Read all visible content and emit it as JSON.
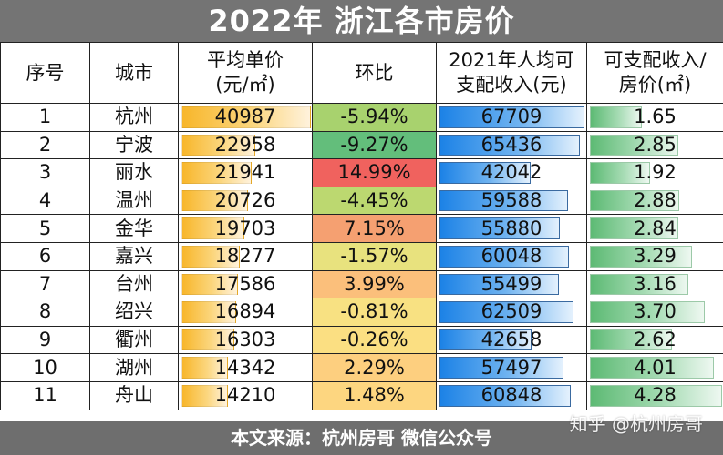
{
  "title": "2022年 浙江各市房价",
  "headers": {
    "index": "序号",
    "city": "城市",
    "price_line1": "平均单价",
    "price_line2": "(元/㎡)",
    "mom": "环比",
    "income_line1": "2021年人均可",
    "income_line2": "支配收入(元)",
    "ratio_line1": "可支配收入/",
    "ratio_line2": "房价(㎡)"
  },
  "rows": [
    {
      "index": "1",
      "city": "杭州",
      "price": "40987",
      "mom": "-5.94%",
      "mom_color": "#a8d26e",
      "income": "67709",
      "ratio": "1.65"
    },
    {
      "index": "2",
      "city": "宁波",
      "price": "22958",
      "mom": "-9.27%",
      "mom_color": "#63be7b",
      "income": "65436",
      "ratio": "2.85"
    },
    {
      "index": "3",
      "city": "丽水",
      "price": "21941",
      "mom": "14.99%",
      "mom_color": "#f0625e",
      "income": "42042",
      "ratio": "1.92"
    },
    {
      "index": "4",
      "city": "温州",
      "price": "20726",
      "mom": "-4.45%",
      "mom_color": "#bcd870",
      "income": "59588",
      "ratio": "2.88"
    },
    {
      "index": "5",
      "city": "金华",
      "price": "19703",
      "mom": "7.15%",
      "mom_color": "#f5a071",
      "income": "55880",
      "ratio": "2.84"
    },
    {
      "index": "6",
      "city": "嘉兴",
      "price": "18277",
      "mom": "-1.57%",
      "mom_color": "#e8e27e",
      "income": "60048",
      "ratio": "3.29"
    },
    {
      "index": "7",
      "city": "台州",
      "price": "17586",
      "mom": "3.99%",
      "mom_color": "#fbbf7b",
      "income": "55499",
      "ratio": "3.16"
    },
    {
      "index": "8",
      "city": "绍兴",
      "price": "16894",
      "mom": "-0.81%",
      "mom_color": "#f8e182",
      "income": "62509",
      "ratio": "3.70"
    },
    {
      "index": "9",
      "city": "衢州",
      "price": "16303",
      "mom": "-0.26%",
      "mom_color": "#fbdf82",
      "income": "42658",
      "ratio": "2.62"
    },
    {
      "index": "10",
      "city": "湖州",
      "price": "14342",
      "mom": "2.29%",
      "mom_color": "#fdcf7f",
      "income": "57497",
      "ratio": "4.01"
    },
    {
      "index": "11",
      "city": "舟山",
      "price": "14210",
      "mom": "1.48%",
      "mom_color": "#fdd680",
      "income": "60848",
      "ratio": "4.28"
    }
  ],
  "footer": {
    "source": "本文来源：杭州房哥 微信公众号",
    "watermark": "知乎 @杭州房哥"
  },
  "colors": {
    "title_bg": "#747474",
    "footer_bg": "#6e6e6e",
    "price_bar": "#f8b62a",
    "income_bar": "#1c82e6",
    "ratio_bar": "#5dba74"
  }
}
